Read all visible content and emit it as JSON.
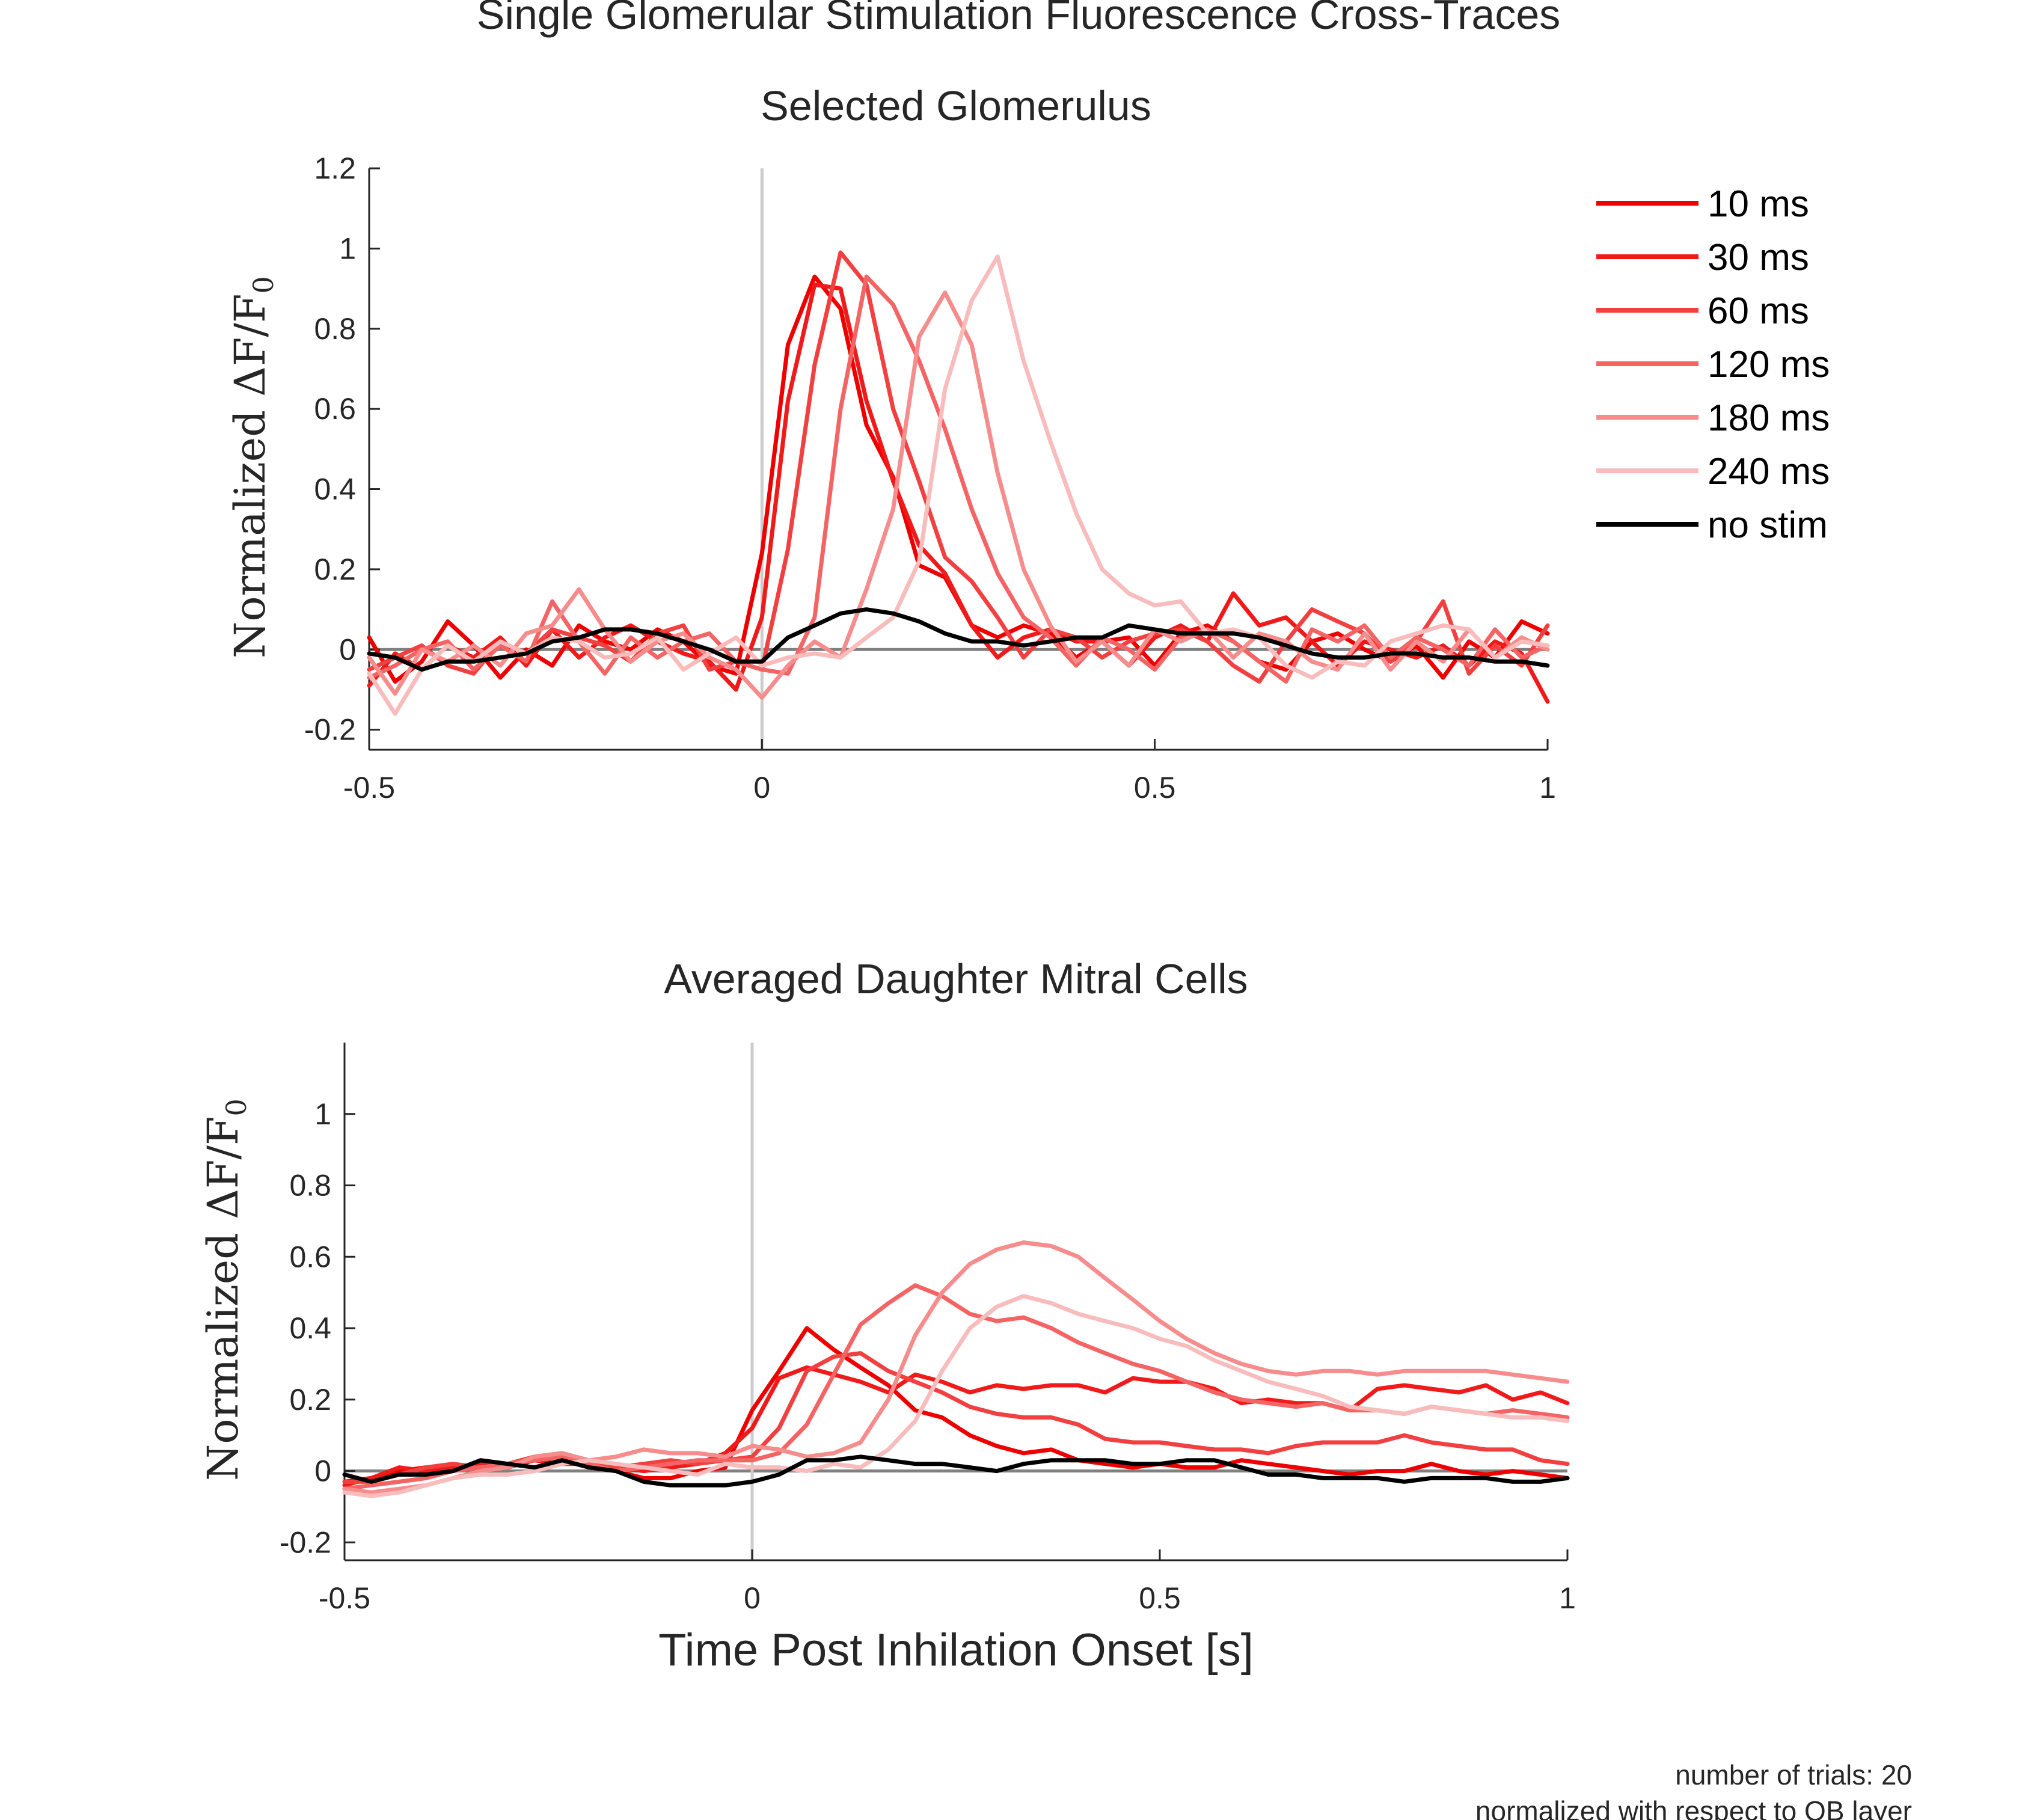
{
  "figure": {
    "title": "Single Glomerular Stimulation Fluorescence Cross-Traces",
    "notes": [
      "number of trials: 20",
      "normalized with respect to OB layer"
    ]
  },
  "legend": {
    "placement": "right of top panel",
    "entries": [
      {
        "label": "10 ms",
        "color": "#ee0000"
      },
      {
        "label": "30 ms",
        "color": "#f01a1a"
      },
      {
        "label": "60 ms",
        "color": "#f24040"
      },
      {
        "label": "120 ms",
        "color": "#f46464"
      },
      {
        "label": "180 ms",
        "color": "#f68c8c"
      },
      {
        "label": "240 ms",
        "color": "#f9bcbc"
      },
      {
        "label": "no stim",
        "color": "#000000"
      }
    ]
  },
  "chart_data": [
    {
      "type": "line",
      "title": "Selected Glomerulus",
      "xlabel": "",
      "ylabel": "Normalized ΔF/F0",
      "xlim": [
        -0.5,
        1
      ],
      "ylim": [
        -0.25,
        1.2
      ],
      "xticks": [
        -0.5,
        0,
        0.5,
        1
      ],
      "xtick_labels": [
        "-0.5",
        "0",
        "0.5",
        "1"
      ],
      "yticks": [
        -0.2,
        0,
        0.2,
        0.4,
        0.6,
        0.8,
        1,
        1.2
      ],
      "ytick_labels": [
        "-0.2",
        "0",
        "0.2",
        "0.4",
        "0.6",
        "0.8",
        "1",
        "1.2"
      ],
      "grid": false,
      "vline_x": 0,
      "hline_y": 0,
      "x": [
        -0.5,
        -0.467,
        -0.433,
        -0.4,
        -0.367,
        -0.333,
        -0.3,
        -0.267,
        -0.233,
        -0.2,
        -0.167,
        -0.133,
        -0.1,
        -0.067,
        -0.033,
        0,
        0.033,
        0.067,
        0.1,
        0.133,
        0.167,
        0.2,
        0.233,
        0.267,
        0.3,
        0.333,
        0.367,
        0.4,
        0.433,
        0.467,
        0.5,
        0.533,
        0.567,
        0.6,
        0.633,
        0.667,
        0.7,
        0.733,
        0.767,
        0.8,
        0.833,
        0.867,
        0.9,
        0.933,
        0.967,
        1
      ],
      "series": [
        {
          "name": "10 ms",
          "values": [
            0.03,
            -0.08,
            -0.03,
            0.07,
            0.01,
            -0.07,
            0,
            -0.04,
            0.06,
            0.02,
            0,
            0.05,
            0.02,
            -0.04,
            -0.06,
            0.24,
            0.76,
            0.93,
            0.85,
            0.56,
            0.43,
            0.21,
            0.18,
            0.06,
            0.03,
            0.06,
            0.04,
            -0.02,
            0.02,
            0.03,
            -0.04,
            0.04,
            0.06,
            0.02,
            -0.03,
            -0.05,
            0.02,
            0.04,
            0,
            -0.03,
            0.01,
            -0.07,
            0.02,
            -0.02,
            0.07,
            0.04
          ]
        },
        {
          "name": "30 ms",
          "values": [
            -0.09,
            -0.01,
            -0.05,
            0.01,
            -0.02,
            0.03,
            -0.04,
            0.05,
            -0.02,
            0.03,
            0.06,
            0.02,
            -0.01,
            -0.03,
            -0.1,
            0.08,
            0.62,
            0.91,
            0.9,
            0.62,
            0.42,
            0.26,
            0.19,
            0.06,
            -0.02,
            0.03,
            0.05,
            0.02,
            0.02,
            -0.04,
            0.03,
            0.06,
            0.02,
            0.14,
            0.06,
            0.08,
            0.02,
            -0.04,
            0.02,
            0,
            -0.02,
            0.01,
            -0.04,
            0.02,
            -0.01,
            -0.13
          ]
        },
        {
          "name": "60 ms",
          "values": [
            -0.05,
            -0.02,
            0.01,
            -0.04,
            -0.06,
            0.02,
            -0.01,
            0.05,
            0.03,
            0.01,
            -0.03,
            0.04,
            0.06,
            -0.05,
            -0.03,
            -0.05,
            0.25,
            0.71,
            0.99,
            0.91,
            0.6,
            0.42,
            0.23,
            0.17,
            0.08,
            -0.02,
            0.05,
            0.03,
            -0.02,
            0.02,
            0.04,
            0.05,
            0.02,
            -0.04,
            -0.08,
            0.02,
            0.1,
            0.07,
            0.04,
            -0.03,
            0.02,
            0.12,
            -0.06,
            0.01,
            -0.04,
            0.06
          ]
        },
        {
          "name": "120 ms",
          "values": [
            -0.07,
            -0.04,
            0,
            0.02,
            -0.05,
            0.01,
            -0.03,
            0.12,
            0.02,
            -0.06,
            0.03,
            -0.02,
            0.02,
            0.04,
            -0.03,
            -0.05,
            -0.06,
            0.08,
            0.6,
            0.93,
            0.86,
            0.72,
            0.55,
            0.35,
            0.19,
            0.08,
            0.03,
            -0.04,
            0.03,
            0,
            -0.05,
            0.03,
            0.05,
            0.02,
            -0.03,
            -0.08,
            0.05,
            0.02,
            0.06,
            -0.02,
            0.03,
            0,
            -0.04,
            0.05,
            -0.02,
            0.01
          ]
        },
        {
          "name": "180 ms",
          "values": [
            -0.02,
            -0.11,
            0,
            -0.03,
            0.01,
            -0.04,
            0.04,
            0.06,
            0.15,
            0.05,
            -0.03,
            0.02,
            0.04,
            -0.02,
            -0.05,
            -0.12,
            -0.04,
            0.02,
            -0.02,
            0.15,
            0.35,
            0.78,
            0.89,
            0.76,
            0.44,
            0.2,
            0.06,
            -0.03,
            0.02,
            -0.04,
            0.05,
            0.02,
            0.05,
            -0.02,
            0.04,
            0.02,
            -0.03,
            -0.05,
            0.04,
            -0.05,
            0.02,
            -0.03,
            0.05,
            -0.02,
            0.03,
            0
          ]
        },
        {
          "name": "240 ms",
          "values": [
            -0.06,
            -0.16,
            -0.05,
            0.01,
            -0.03,
            0.02,
            -0.01,
            0.03,
            0.02,
            -0.02,
            -0.01,
            0.03,
            -0.05,
            -0.01,
            0.03,
            -0.04,
            -0.02,
            -0.01,
            -0.02,
            0.03,
            0.08,
            0.22,
            0.65,
            0.87,
            0.98,
            0.72,
            0.52,
            0.34,
            0.2,
            0.14,
            0.11,
            0.12,
            0.04,
            0.05,
            0.03,
            -0.04,
            -0.07,
            -0.03,
            -0.04,
            0.02,
            0.04,
            0.06,
            0.05,
            -0.02,
            0.02,
            0.01
          ]
        },
        {
          "name": "no stim",
          "values": [
            -0.01,
            -0.02,
            -0.05,
            -0.03,
            -0.03,
            -0.02,
            -0.01,
            0.02,
            0.03,
            0.05,
            0.05,
            0.04,
            0.02,
            0,
            -0.03,
            -0.03,
            0.03,
            0.06,
            0.09,
            0.1,
            0.09,
            0.07,
            0.04,
            0.02,
            0.02,
            0.01,
            0.02,
            0.03,
            0.03,
            0.06,
            0.05,
            0.04,
            0.04,
            0.04,
            0.03,
            0.01,
            -0.01,
            -0.02,
            -0.02,
            -0.01,
            -0.01,
            -0.02,
            -0.02,
            -0.03,
            -0.03,
            -0.04
          ]
        }
      ]
    },
    {
      "type": "line",
      "title": "Averaged Daughter Mitral Cells",
      "xlabel": "Time Post Inhilation Onset [s]",
      "ylabel": "Normalized ΔF/F0",
      "xlim": [
        -0.5,
        1
      ],
      "ylim": [
        -0.25,
        1.2
      ],
      "xticks": [
        -0.5,
        0,
        0.5,
        1
      ],
      "xtick_labels": [
        "-0.5",
        "0",
        "0.5",
        "1"
      ],
      "yticks": [
        -0.2,
        0,
        0.2,
        0.4,
        0.6,
        0.8,
        1
      ],
      "ytick_labels": [
        "-0.2",
        "0",
        "0.2",
        "0.4",
        "0.6",
        "0.8",
        "1"
      ],
      "grid": false,
      "vline_x": 0,
      "hline_y": 0,
      "x": [
        -0.5,
        -0.467,
        -0.433,
        -0.4,
        -0.367,
        -0.333,
        -0.3,
        -0.267,
        -0.233,
        -0.2,
        -0.167,
        -0.133,
        -0.1,
        -0.067,
        -0.033,
        0,
        0.033,
        0.067,
        0.1,
        0.133,
        0.167,
        0.2,
        0.233,
        0.267,
        0.3,
        0.333,
        0.367,
        0.4,
        0.433,
        0.467,
        0.5,
        0.533,
        0.567,
        0.6,
        0.633,
        0.667,
        0.7,
        0.733,
        0.767,
        0.8,
        0.833,
        0.867,
        0.9,
        0.933,
        0.967,
        1
      ],
      "series": [
        {
          "name": "10 ms",
          "values": [
            -0.03,
            -0.02,
            0,
            0.01,
            0,
            0.03,
            0.02,
            0.01,
            0.03,
            0.01,
            0,
            -0.02,
            -0.02,
            0,
            0.01,
            0.17,
            0.28,
            0.4,
            0.34,
            0.29,
            0.24,
            0.17,
            0.15,
            0.1,
            0.07,
            0.05,
            0.06,
            0.03,
            0.02,
            0.01,
            0.02,
            0.01,
            0.01,
            0.03,
            0.02,
            0.01,
            0,
            -0.01,
            0,
            0,
            0.02,
            0,
            -0.01,
            0,
            -0.01,
            -0.02
          ]
        },
        {
          "name": "30 ms",
          "values": [
            -0.04,
            -0.02,
            0.01,
            0,
            0.01,
            0.02,
            0.01,
            0.03,
            0.02,
            0.02,
            0.01,
            0,
            0.01,
            0.02,
            0.05,
            0.12,
            0.26,
            0.29,
            0.27,
            0.25,
            0.22,
            0.27,
            0.25,
            0.22,
            0.24,
            0.23,
            0.24,
            0.24,
            0.22,
            0.26,
            0.25,
            0.25,
            0.23,
            0.19,
            0.2,
            0.19,
            0.19,
            0.17,
            0.23,
            0.24,
            0.23,
            0.22,
            0.24,
            0.2,
            0.22,
            0.19
          ]
        },
        {
          "name": "60 ms",
          "values": [
            -0.03,
            -0.03,
            -0.01,
            0.01,
            0.02,
            0.01,
            0.02,
            0.04,
            0.05,
            0.02,
            0.01,
            0.02,
            0.03,
            0.02,
            0.03,
            0.04,
            0.12,
            0.28,
            0.32,
            0.33,
            0.28,
            0.25,
            0.22,
            0.18,
            0.16,
            0.15,
            0.15,
            0.13,
            0.09,
            0.08,
            0.08,
            0.07,
            0.06,
            0.06,
            0.05,
            0.07,
            0.08,
            0.08,
            0.08,
            0.1,
            0.08,
            0.07,
            0.06,
            0.06,
            0.03,
            0.02
          ]
        },
        {
          "name": "120 ms",
          "values": [
            -0.05,
            -0.04,
            -0.03,
            -0.02,
            0,
            0.01,
            0.02,
            0.03,
            0.04,
            0.02,
            0,
            0.01,
            0.02,
            0.03,
            0.03,
            0.03,
            0.05,
            0.13,
            0.27,
            0.41,
            0.47,
            0.52,
            0.49,
            0.44,
            0.42,
            0.43,
            0.4,
            0.36,
            0.33,
            0.3,
            0.28,
            0.25,
            0.22,
            0.2,
            0.19,
            0.18,
            0.19,
            0.17,
            0.17,
            0.16,
            0.18,
            0.17,
            0.16,
            0.17,
            0.16,
            0.15
          ]
        },
        {
          "name": "180 ms",
          "values": [
            -0.05,
            -0.06,
            -0.05,
            -0.04,
            -0.02,
            0,
            0.01,
            0.04,
            0.05,
            0.03,
            0.04,
            0.06,
            0.05,
            0.05,
            0.04,
            0.07,
            0.06,
            0.04,
            0.05,
            0.08,
            0.2,
            0.38,
            0.5,
            0.58,
            0.62,
            0.64,
            0.63,
            0.6,
            0.54,
            0.48,
            0.42,
            0.37,
            0.33,
            0.3,
            0.28,
            0.27,
            0.28,
            0.28,
            0.27,
            0.28,
            0.28,
            0.28,
            0.28,
            0.27,
            0.26,
            0.25
          ]
        },
        {
          "name": "240 ms",
          "values": [
            -0.06,
            -0.07,
            -0.06,
            -0.04,
            -0.02,
            -0.01,
            -0.01,
            0,
            0.02,
            0.03,
            0.02,
            0.01,
            0,
            -0.01,
            0.02,
            0.01,
            0.01,
            0,
            0.02,
            0.01,
            0.06,
            0.14,
            0.28,
            0.4,
            0.46,
            0.49,
            0.47,
            0.44,
            0.42,
            0.4,
            0.37,
            0.35,
            0.31,
            0.28,
            0.25,
            0.23,
            0.21,
            0.18,
            0.17,
            0.16,
            0.18,
            0.17,
            0.16,
            0.15,
            0.15,
            0.14
          ]
        },
        {
          "name": "no stim",
          "values": [
            -0.01,
            -0.03,
            -0.01,
            -0.01,
            0,
            0.03,
            0.02,
            0.01,
            0.03,
            0.01,
            0,
            -0.03,
            -0.04,
            -0.04,
            -0.04,
            -0.03,
            -0.01,
            0.03,
            0.03,
            0.04,
            0.03,
            0.02,
            0.02,
            0.01,
            0,
            0.02,
            0.03,
            0.03,
            0.03,
            0.02,
            0.02,
            0.03,
            0.03,
            0.01,
            -0.01,
            -0.01,
            -0.02,
            -0.02,
            -0.02,
            -0.03,
            -0.02,
            -0.02,
            -0.02,
            -0.03,
            -0.03,
            -0.02
          ]
        }
      ]
    }
  ]
}
